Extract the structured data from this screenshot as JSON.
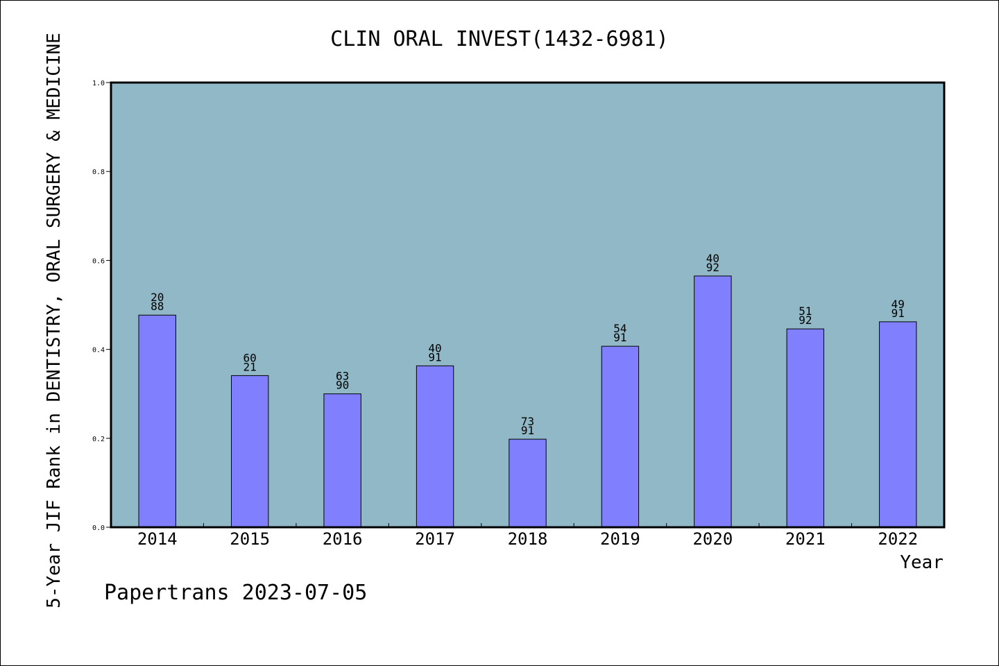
{
  "chart_data": {
    "type": "bar",
    "title": "CLIN ORAL INVEST(1432-6981)",
    "xlabel": "Year",
    "ylabel": "5-Year JIF Rank in DENTISTRY, ORAL SURGERY & MEDICINE",
    "categories": [
      "2014",
      "2015",
      "2016",
      "2017",
      "2018",
      "2019",
      "2020",
      "2021",
      "2022"
    ],
    "values": [
      0.477,
      0.341,
      0.3,
      0.363,
      0.198,
      0.407,
      0.565,
      0.446,
      0.462
    ],
    "data_labels": [
      [
        "20",
        "88"
      ],
      [
        "60",
        "21"
      ],
      [
        "63",
        "90"
      ],
      [
        "40",
        "91"
      ],
      [
        "73",
        "91"
      ],
      [
        "54",
        "91"
      ],
      [
        "40",
        "92"
      ],
      [
        "51",
        "92"
      ],
      [
        "49",
        "91"
      ]
    ],
    "ylim": [
      0,
      1.0
    ],
    "yticks": [
      "0.0",
      "0.2",
      "0.4",
      "0.6",
      "0.8",
      "1.0"
    ],
    "grid": false,
    "colors": {
      "plot_background": "#90b8c6",
      "bar_fill": "#8080ff",
      "bar_stroke": "#000000"
    }
  },
  "footer": {
    "text": "Papertrans 2023-07-05"
  }
}
